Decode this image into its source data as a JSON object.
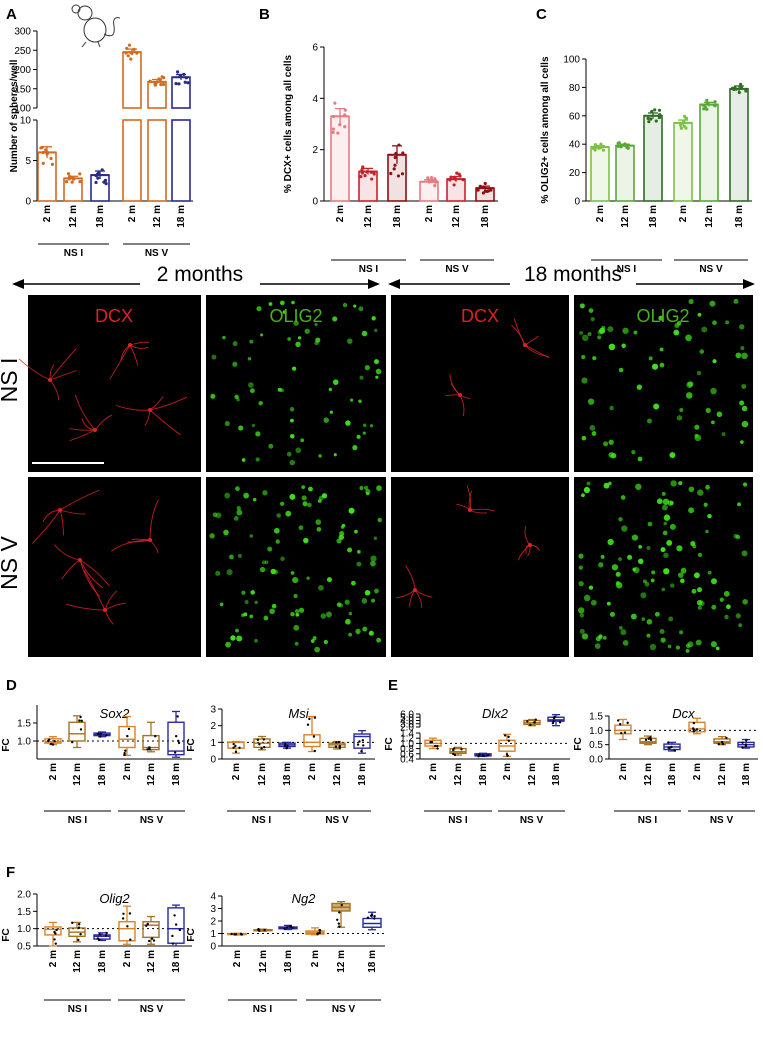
{
  "panel_letters": [
    "A",
    "B",
    "C",
    "D",
    "E",
    "F"
  ],
  "time_labels": [
    "2 months",
    "18 months"
  ],
  "row_labels": [
    "NS I",
    "NS V"
  ],
  "image_markers": [
    "DCX",
    "OLIG2",
    "DCX",
    "OLIG2"
  ],
  "colors": {
    "orange": "#d46a1f",
    "orange_light": "#e79850",
    "navy": "#2a2a8a",
    "pink": "#e87a82",
    "red": "#c8202a",
    "darkred": "#8e0f14",
    "green_light": "#7cc242",
    "green_mid": "#5aa636",
    "green_dark": "#2f6b23",
    "dcx_text": "#e02020",
    "olig_text": "#4caf1f",
    "box_orange": "#d9822b",
    "box_brown": "#a6721f",
    "box_blue": "#2929a3"
  },
  "chart_data": [
    {
      "panel": "A",
      "type": "bar",
      "ylabel": "Number of spheres/well",
      "categories": [
        "2 m",
        "12 m",
        "18 m",
        "2 m",
        "12 m",
        "18 m"
      ],
      "groups": [
        "NS I",
        "NS V"
      ],
      "values": [
        6.0,
        2.8,
        3.2,
        245,
        168,
        180
      ],
      "errors": [
        0.7,
        0.25,
        0.5,
        8,
        6,
        7
      ],
      "axis_break": [
        10,
        100
      ],
      "ylim_lower": [
        0,
        10
      ],
      "ylim_upper": [
        100,
        300
      ],
      "yticks_lower": [
        0,
        5,
        10
      ],
      "yticks_upper": [
        100,
        150,
        200,
        250,
        300
      ]
    },
    {
      "panel": "B",
      "type": "bar",
      "ylabel": "% DCX+ cells among all cells",
      "categories": [
        "2 m",
        "12 m",
        "18 m",
        "2 m",
        "12 m",
        "18 m"
      ],
      "groups": [
        "NS I",
        "NS V"
      ],
      "values": [
        3.3,
        1.15,
        1.8,
        0.75,
        0.85,
        0.5
      ],
      "errors": [
        0.3,
        0.12,
        0.35,
        0.08,
        0.1,
        0.08
      ],
      "ylim": [
        0,
        6
      ],
      "yticks": [
        0,
        2,
        4,
        6
      ]
    },
    {
      "panel": "C",
      "type": "bar",
      "ylabel": "% OLIG2+ cells among all cells",
      "categories": [
        "2 m",
        "12 m",
        "18 m",
        "2 m",
        "12 m",
        "18 m"
      ],
      "groups": [
        "NS I",
        "NS V"
      ],
      "values": [
        38,
        39,
        60,
        55,
        68,
        79
      ],
      "errors": [
        1,
        1,
        2,
        2,
        1.5,
        2
      ],
      "ylim": [
        0,
        100
      ],
      "yticks": [
        0,
        20,
        40,
        60,
        80,
        100
      ]
    },
    {
      "panel": "D",
      "type": "box",
      "title": "Sox2",
      "ylabel": "FC",
      "categories": [
        "2 m",
        "12 m",
        "18 m",
        "2 m",
        "12 m",
        "18 m"
      ],
      "groups": [
        "NS I",
        "NS V"
      ],
      "boxes": [
        [
          0.9,
          0.94,
          0.98,
          1.06,
          1.12
        ],
        [
          0.82,
          1.0,
          1.2,
          1.52,
          1.7
        ],
        [
          1.12,
          1.15,
          1.18,
          1.22,
          1.25
        ],
        [
          0.6,
          0.82,
          1.05,
          1.4,
          1.68
        ],
        [
          0.7,
          0.76,
          0.82,
          1.15,
          1.52
        ],
        [
          0.55,
          0.62,
          0.72,
          1.52,
          1.82
        ]
      ],
      "ylim": [
        0.5,
        2.0
      ],
      "yticks": [
        1.0,
        1.5
      ],
      "reference": 1.0
    },
    {
      "panel": "D",
      "type": "box",
      "title": "Msi",
      "ylabel": "FC",
      "categories": [
        "2 m",
        "12 m",
        "18 m",
        "2 m",
        "12 m",
        "18 m"
      ],
      "groups": [
        "NS I",
        "NS V"
      ],
      "boxes": [
        [
          0.35,
          0.65,
          1.0,
          1.02,
          1.05
        ],
        [
          0.55,
          0.7,
          0.95,
          1.2,
          1.35
        ],
        [
          0.65,
          0.75,
          0.85,
          0.95,
          1.0
        ],
        [
          0.45,
          0.75,
          1.0,
          1.45,
          2.55
        ],
        [
          0.6,
          0.7,
          0.85,
          0.95,
          1.05
        ],
        [
          0.35,
          0.65,
          1.35,
          1.5,
          1.7
        ]
      ],
      "ylim": [
        0,
        3
      ],
      "yticks": [
        0,
        1,
        2,
        3
      ],
      "reference": 1.0
    },
    {
      "panel": "E",
      "type": "box",
      "title": "Dlx2",
      "ylabel": "FC",
      "categories": [
        "2 m",
        "12 m",
        "18 m",
        "2 m",
        "12 m",
        "18 m"
      ],
      "groups": [
        "NS I",
        "NS V"
      ],
      "boxes": [
        [
          0.8,
          0.9,
          1.0,
          1.12,
          1.2
        ],
        [
          0.55,
          0.62,
          0.68,
          0.8,
          0.85
        ],
        [
          0.5,
          0.52,
          0.56,
          0.6,
          0.62
        ],
        [
          0.5,
          0.7,
          0.9,
          1.12,
          1.35
        ],
        [
          2.4,
          2.8,
          3.3,
          4.0,
          4.3
        ],
        [
          2.4,
          3.8,
          4.2,
          5.0,
          5.8
        ]
      ],
      "axis_break": [
        1.4,
        2.0
      ],
      "yticks_lower": [
        0.4,
        0.6,
        0.8,
        1.0,
        1.2,
        1.4
      ],
      "yticks_upper": [
        2,
        3,
        4,
        5,
        6
      ],
      "reference": 1.0
    },
    {
      "panel": "E",
      "type": "box",
      "title": "Dcx",
      "ylabel": "FC",
      "categories": [
        "2 m",
        "12 m",
        "18 m",
        "2 m",
        "12 m",
        "18 m"
      ],
      "groups": [
        "NS I",
        "NS V"
      ],
      "boxes": [
        [
          0.68,
          0.88,
          1.0,
          1.18,
          1.38
        ],
        [
          0.5,
          0.55,
          0.6,
          0.72,
          0.8
        ],
        [
          0.28,
          0.33,
          0.42,
          0.52,
          0.58
        ],
        [
          0.88,
          0.95,
          1.05,
          1.28,
          1.42
        ],
        [
          0.5,
          0.55,
          0.6,
          0.7,
          0.78
        ],
        [
          0.38,
          0.42,
          0.5,
          0.58,
          0.68
        ]
      ],
      "ylim": [
        0,
        1.5
      ],
      "yticks": [
        0.0,
        0.5,
        1.0,
        1.5
      ],
      "reference": 1.0
    },
    {
      "panel": "F",
      "type": "box",
      "title": "Olig2",
      "ylabel": "FC",
      "categories": [
        "2 m",
        "12 m",
        "18 m",
        "2 m",
        "12 m",
        "18 m"
      ],
      "groups": [
        "NS I",
        "NS V"
      ],
      "boxes": [
        [
          0.42,
          0.82,
          0.98,
          1.05,
          1.18
        ],
        [
          0.62,
          0.78,
          0.9,
          1.02,
          1.18
        ],
        [
          0.66,
          0.7,
          0.78,
          0.82,
          0.88
        ],
        [
          0.55,
          0.65,
          1.0,
          1.2,
          1.65
        ],
        [
          0.55,
          0.75,
          1.1,
          1.2,
          1.35
        ],
        [
          0.42,
          0.58,
          1.0,
          1.6,
          1.68
        ]
      ],
      "ylim": [
        0.5,
        2.0
      ],
      "yticks": [
        0.5,
        1.0,
        1.5,
        2.0
      ],
      "reference": 1.0
    },
    {
      "panel": "F",
      "type": "box",
      "title": "Ng2",
      "ylabel": "FC",
      "categories": [
        "2 m",
        "12 m",
        "18 m",
        "2 m",
        "12 m",
        "18 m"
      ],
      "groups": [
        "NS I",
        "NS V"
      ],
      "boxes": [
        [
          0.88,
          0.92,
          0.96,
          0.99,
          1.02
        ],
        [
          1.18,
          1.22,
          1.28,
          1.3,
          1.35
        ],
        [
          1.32,
          1.38,
          1.45,
          1.52,
          1.65
        ],
        [
          0.9,
          0.95,
          1.05,
          1.2,
          1.45
        ],
        [
          1.5,
          2.8,
          3.1,
          3.4,
          3.55
        ],
        [
          1.3,
          1.5,
          1.8,
          2.2,
          2.7
        ]
      ],
      "ylim": [
        0,
        4
      ],
      "yticks": [
        0,
        1,
        2,
        3,
        4
      ],
      "reference": 1.0
    }
  ]
}
